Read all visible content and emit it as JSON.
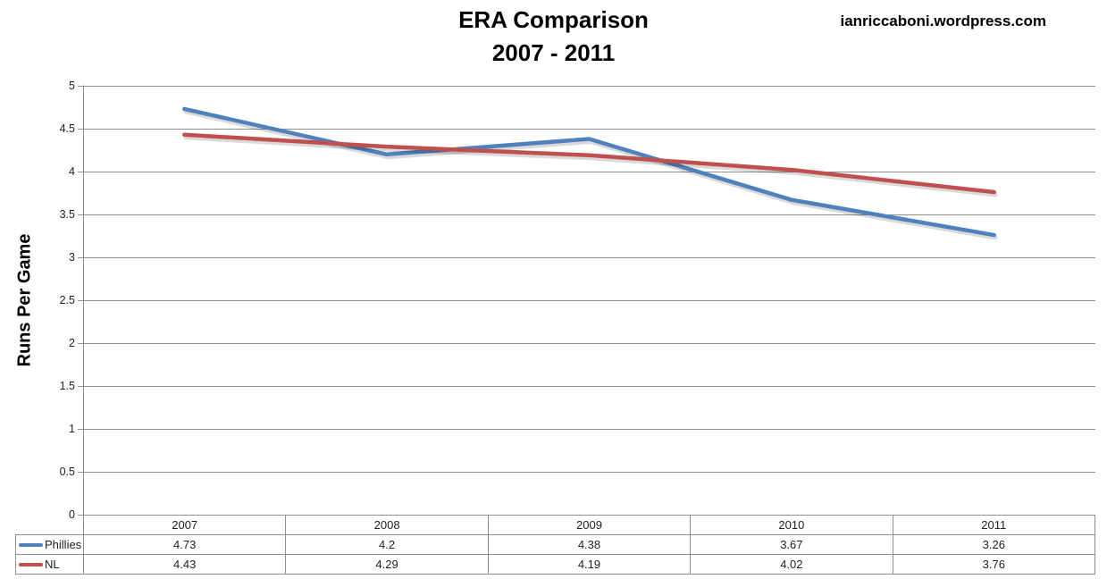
{
  "header": {
    "title_line1": "ERA Comparison",
    "title_line2": "2007 - 2011",
    "watermark": "ianriccaboni.wordpress.com"
  },
  "chart_data": {
    "type": "line",
    "title": "ERA Comparison 2007 - 2011",
    "ylabel": "Runs Per Game",
    "categories": [
      "2007",
      "2008",
      "2009",
      "2010",
      "2011"
    ],
    "series": [
      {
        "name": "Phillies",
        "color": "#4F81BD",
        "values": [
          4.73,
          4.2,
          4.38,
          3.67,
          3.26
        ]
      },
      {
        "name": "NL",
        "color": "#C0504D",
        "values": [
          4.43,
          4.29,
          4.19,
          4.02,
          3.76
        ]
      }
    ],
    "ylim": [
      0,
      5
    ],
    "ytick_step": 0.5,
    "ytick_labels": [
      "0",
      "0.5",
      "1",
      "1.5",
      "2",
      "2.5",
      "3",
      "3.5",
      "4",
      "4.5",
      "5"
    ],
    "grid": true,
    "legend_position": "table-left",
    "legend_items": [
      "Phillies",
      "NL"
    ],
    "colors": {
      "grid": "#8e8e8e",
      "axis": "#8e8e8e",
      "text": "#1f1f1f",
      "title": "#000000"
    }
  }
}
